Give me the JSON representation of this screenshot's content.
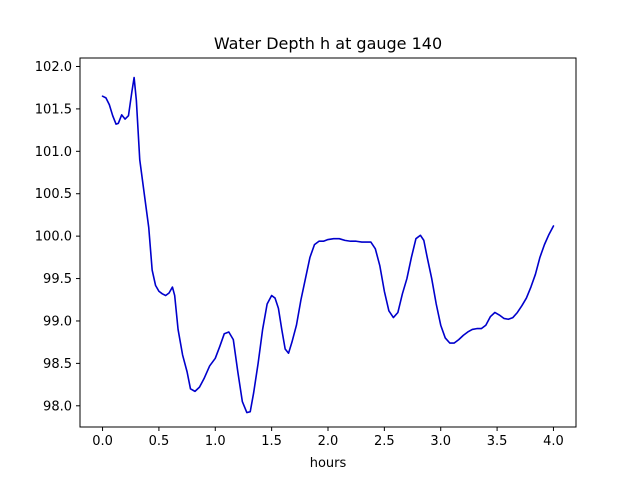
{
  "chart_data": {
    "type": "line",
    "title": "Water Depth h at gauge 140",
    "xlabel": "hours",
    "ylabel": "",
    "xlim": [
      -0.2,
      4.2
    ],
    "ylim": [
      97.75,
      102.1
    ],
    "grid": false,
    "legend": "none",
    "x_ticks": [
      0.0,
      0.5,
      1.0,
      1.5,
      2.0,
      2.5,
      3.0,
      3.5,
      4.0
    ],
    "x_tick_labels": [
      "0.0",
      "0.5",
      "1.0",
      "1.5",
      "2.0",
      "2.5",
      "3.0",
      "3.5",
      "4.0"
    ],
    "y_ticks": [
      98.0,
      98.5,
      99.0,
      99.5,
      100.0,
      100.5,
      101.0,
      101.5,
      102.0
    ],
    "y_tick_labels": [
      "98.0",
      "98.5",
      "99.0",
      "99.5",
      "100.0",
      "100.5",
      "101.0",
      "101.5",
      "102.0"
    ],
    "series": [
      {
        "color": "#0000cc",
        "points": [
          [
            0.0,
            101.65
          ],
          [
            0.03,
            101.63
          ],
          [
            0.06,
            101.55
          ],
          [
            0.09,
            101.42
          ],
          [
            0.12,
            101.32
          ],
          [
            0.14,
            101.33
          ],
          [
            0.17,
            101.43
          ],
          [
            0.2,
            101.38
          ],
          [
            0.23,
            101.42
          ],
          [
            0.26,
            101.7
          ],
          [
            0.28,
            101.87
          ],
          [
            0.3,
            101.6
          ],
          [
            0.33,
            100.9
          ],
          [
            0.37,
            100.5
          ],
          [
            0.41,
            100.1
          ],
          [
            0.44,
            99.6
          ],
          [
            0.47,
            99.42
          ],
          [
            0.5,
            99.35
          ],
          [
            0.53,
            99.32
          ],
          [
            0.56,
            99.3
          ],
          [
            0.59,
            99.33
          ],
          [
            0.62,
            99.4
          ],
          [
            0.64,
            99.3
          ],
          [
            0.67,
            98.9
          ],
          [
            0.71,
            98.6
          ],
          [
            0.75,
            98.4
          ],
          [
            0.78,
            98.2
          ],
          [
            0.82,
            98.17
          ],
          [
            0.86,
            98.22
          ],
          [
            0.9,
            98.32
          ],
          [
            0.95,
            98.47
          ],
          [
            1.0,
            98.56
          ],
          [
            1.04,
            98.7
          ],
          [
            1.08,
            98.85
          ],
          [
            1.12,
            98.87
          ],
          [
            1.16,
            98.78
          ],
          [
            1.2,
            98.4
          ],
          [
            1.24,
            98.05
          ],
          [
            1.28,
            97.92
          ],
          [
            1.31,
            97.93
          ],
          [
            1.34,
            98.15
          ],
          [
            1.38,
            98.5
          ],
          [
            1.42,
            98.9
          ],
          [
            1.46,
            99.2
          ],
          [
            1.5,
            99.3
          ],
          [
            1.53,
            99.27
          ],
          [
            1.56,
            99.15
          ],
          [
            1.59,
            98.9
          ],
          [
            1.62,
            98.67
          ],
          [
            1.65,
            98.62
          ],
          [
            1.68,
            98.75
          ],
          [
            1.72,
            98.95
          ],
          [
            1.76,
            99.25
          ],
          [
            1.8,
            99.5
          ],
          [
            1.84,
            99.75
          ],
          [
            1.88,
            99.9
          ],
          [
            1.92,
            99.94
          ],
          [
            1.96,
            99.94
          ],
          [
            2.0,
            99.96
          ],
          [
            2.05,
            99.97
          ],
          [
            2.1,
            99.97
          ],
          [
            2.15,
            99.95
          ],
          [
            2.2,
            99.94
          ],
          [
            2.25,
            99.94
          ],
          [
            2.3,
            99.93
          ],
          [
            2.35,
            99.93
          ],
          [
            2.38,
            99.93
          ],
          [
            2.42,
            99.85
          ],
          [
            2.46,
            99.65
          ],
          [
            2.5,
            99.35
          ],
          [
            2.54,
            99.12
          ],
          [
            2.58,
            99.04
          ],
          [
            2.62,
            99.1
          ],
          [
            2.66,
            99.32
          ],
          [
            2.7,
            99.5
          ],
          [
            2.74,
            99.75
          ],
          [
            2.78,
            99.97
          ],
          [
            2.82,
            100.01
          ],
          [
            2.85,
            99.95
          ],
          [
            2.88,
            99.75
          ],
          [
            2.92,
            99.5
          ],
          [
            2.96,
            99.2
          ],
          [
            3.0,
            98.95
          ],
          [
            3.04,
            98.8
          ],
          [
            3.08,
            98.74
          ],
          [
            3.12,
            98.74
          ],
          [
            3.16,
            98.78
          ],
          [
            3.2,
            98.83
          ],
          [
            3.24,
            98.87
          ],
          [
            3.28,
            98.9
          ],
          [
            3.32,
            98.91
          ],
          [
            3.36,
            98.91
          ],
          [
            3.4,
            98.95
          ],
          [
            3.44,
            99.05
          ],
          [
            3.48,
            99.1
          ],
          [
            3.52,
            99.07
          ],
          [
            3.56,
            99.03
          ],
          [
            3.6,
            99.02
          ],
          [
            3.64,
            99.04
          ],
          [
            3.68,
            99.1
          ],
          [
            3.72,
            99.18
          ],
          [
            3.76,
            99.27
          ],
          [
            3.8,
            99.4
          ],
          [
            3.84,
            99.55
          ],
          [
            3.88,
            99.75
          ],
          [
            3.92,
            99.9
          ],
          [
            3.96,
            100.02
          ],
          [
            4.0,
            100.12
          ]
        ]
      }
    ]
  }
}
